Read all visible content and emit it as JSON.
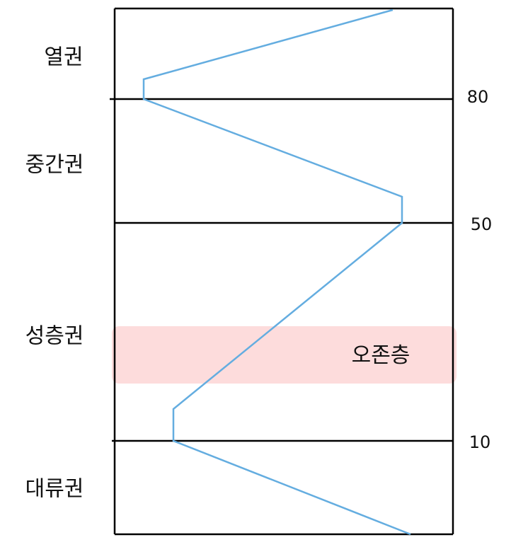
{
  "layers": [
    {
      "label": "열권"
    },
    {
      "label": "중간권"
    },
    {
      "label": "성층권"
    },
    {
      "label": "대류권"
    }
  ],
  "boundaries": [
    {
      "altitude": 80
    },
    {
      "altitude": 50
    },
    {
      "altitude": 10
    }
  ],
  "ozone_layer": {
    "label": "오존층"
  }
}
